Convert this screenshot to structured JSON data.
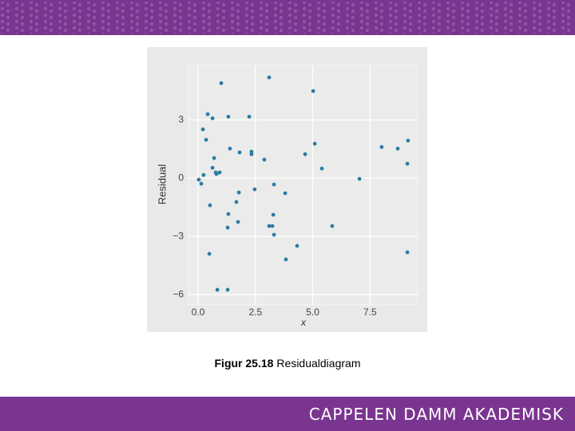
{
  "chart_data": {
    "type": "scatter",
    "xlabel": "x",
    "ylabel": "Residual",
    "x": [
      1.01,
      3.1,
      5.02,
      0.42,
      0.63,
      1.32,
      2.23,
      0.21,
      0.35,
      1.39,
      1.81,
      2.33,
      2.33,
      2.89,
      4.67,
      5.09,
      0.7,
      0.63,
      5.4,
      0.8,
      0.94,
      0.77,
      0.24,
      0.03,
      0.14,
      7.04,
      8.01,
      8.71,
      9.16,
      9.13,
      2.47,
      3.31,
      3.8,
      1.78,
      1.67,
      0.52,
      1.32,
      1.74,
      3.28,
      1.29,
      3.1,
      3.24,
      3.31,
      5.85,
      4.32,
      3.83,
      0.49,
      9.13,
      0.84,
      1.29
    ],
    "values": [
      4.89,
      5.18,
      4.48,
      3.29,
      3.08,
      3.16,
      3.16,
      2.51,
      1.97,
      1.52,
      1.32,
      1.36,
      1.23,
      0.95,
      1.23,
      1.77,
      1.03,
      0.53,
      0.49,
      0.21,
      0.29,
      0.29,
      0.16,
      -0.08,
      -0.29,
      -0.04,
      1.6,
      1.52,
      1.93,
      0.74,
      -0.58,
      -0.33,
      -0.78,
      -0.74,
      -1.23,
      -1.4,
      -1.85,
      -2.26,
      -1.89,
      -2.55,
      -2.47,
      -2.47,
      -2.92,
      -2.47,
      -3.49,
      -4.19,
      -3.9,
      -3.82,
      -5.75,
      -5.75
    ],
    "color": "#2b7ba3",
    "xlim": [
      -0.42,
      9.58
    ],
    "ylim": [
      -6.53,
      5.8
    ],
    "xticks": [
      {
        "value": 0,
        "label": "0.0"
      },
      2.5,
      {
        "value": 5,
        "label": "5.0"
      },
      7.5
    ],
    "yticks": [
      3,
      0,
      {
        "value": -3,
        "label": "−3"
      },
      {
        "value": -6,
        "label": "−6"
      }
    ],
    "grid": true
  },
  "caption": {
    "label": "Figur 25.18",
    "text": "Residualdiagram"
  },
  "footer": "CAPPELEN DAMM AKADEMISK"
}
